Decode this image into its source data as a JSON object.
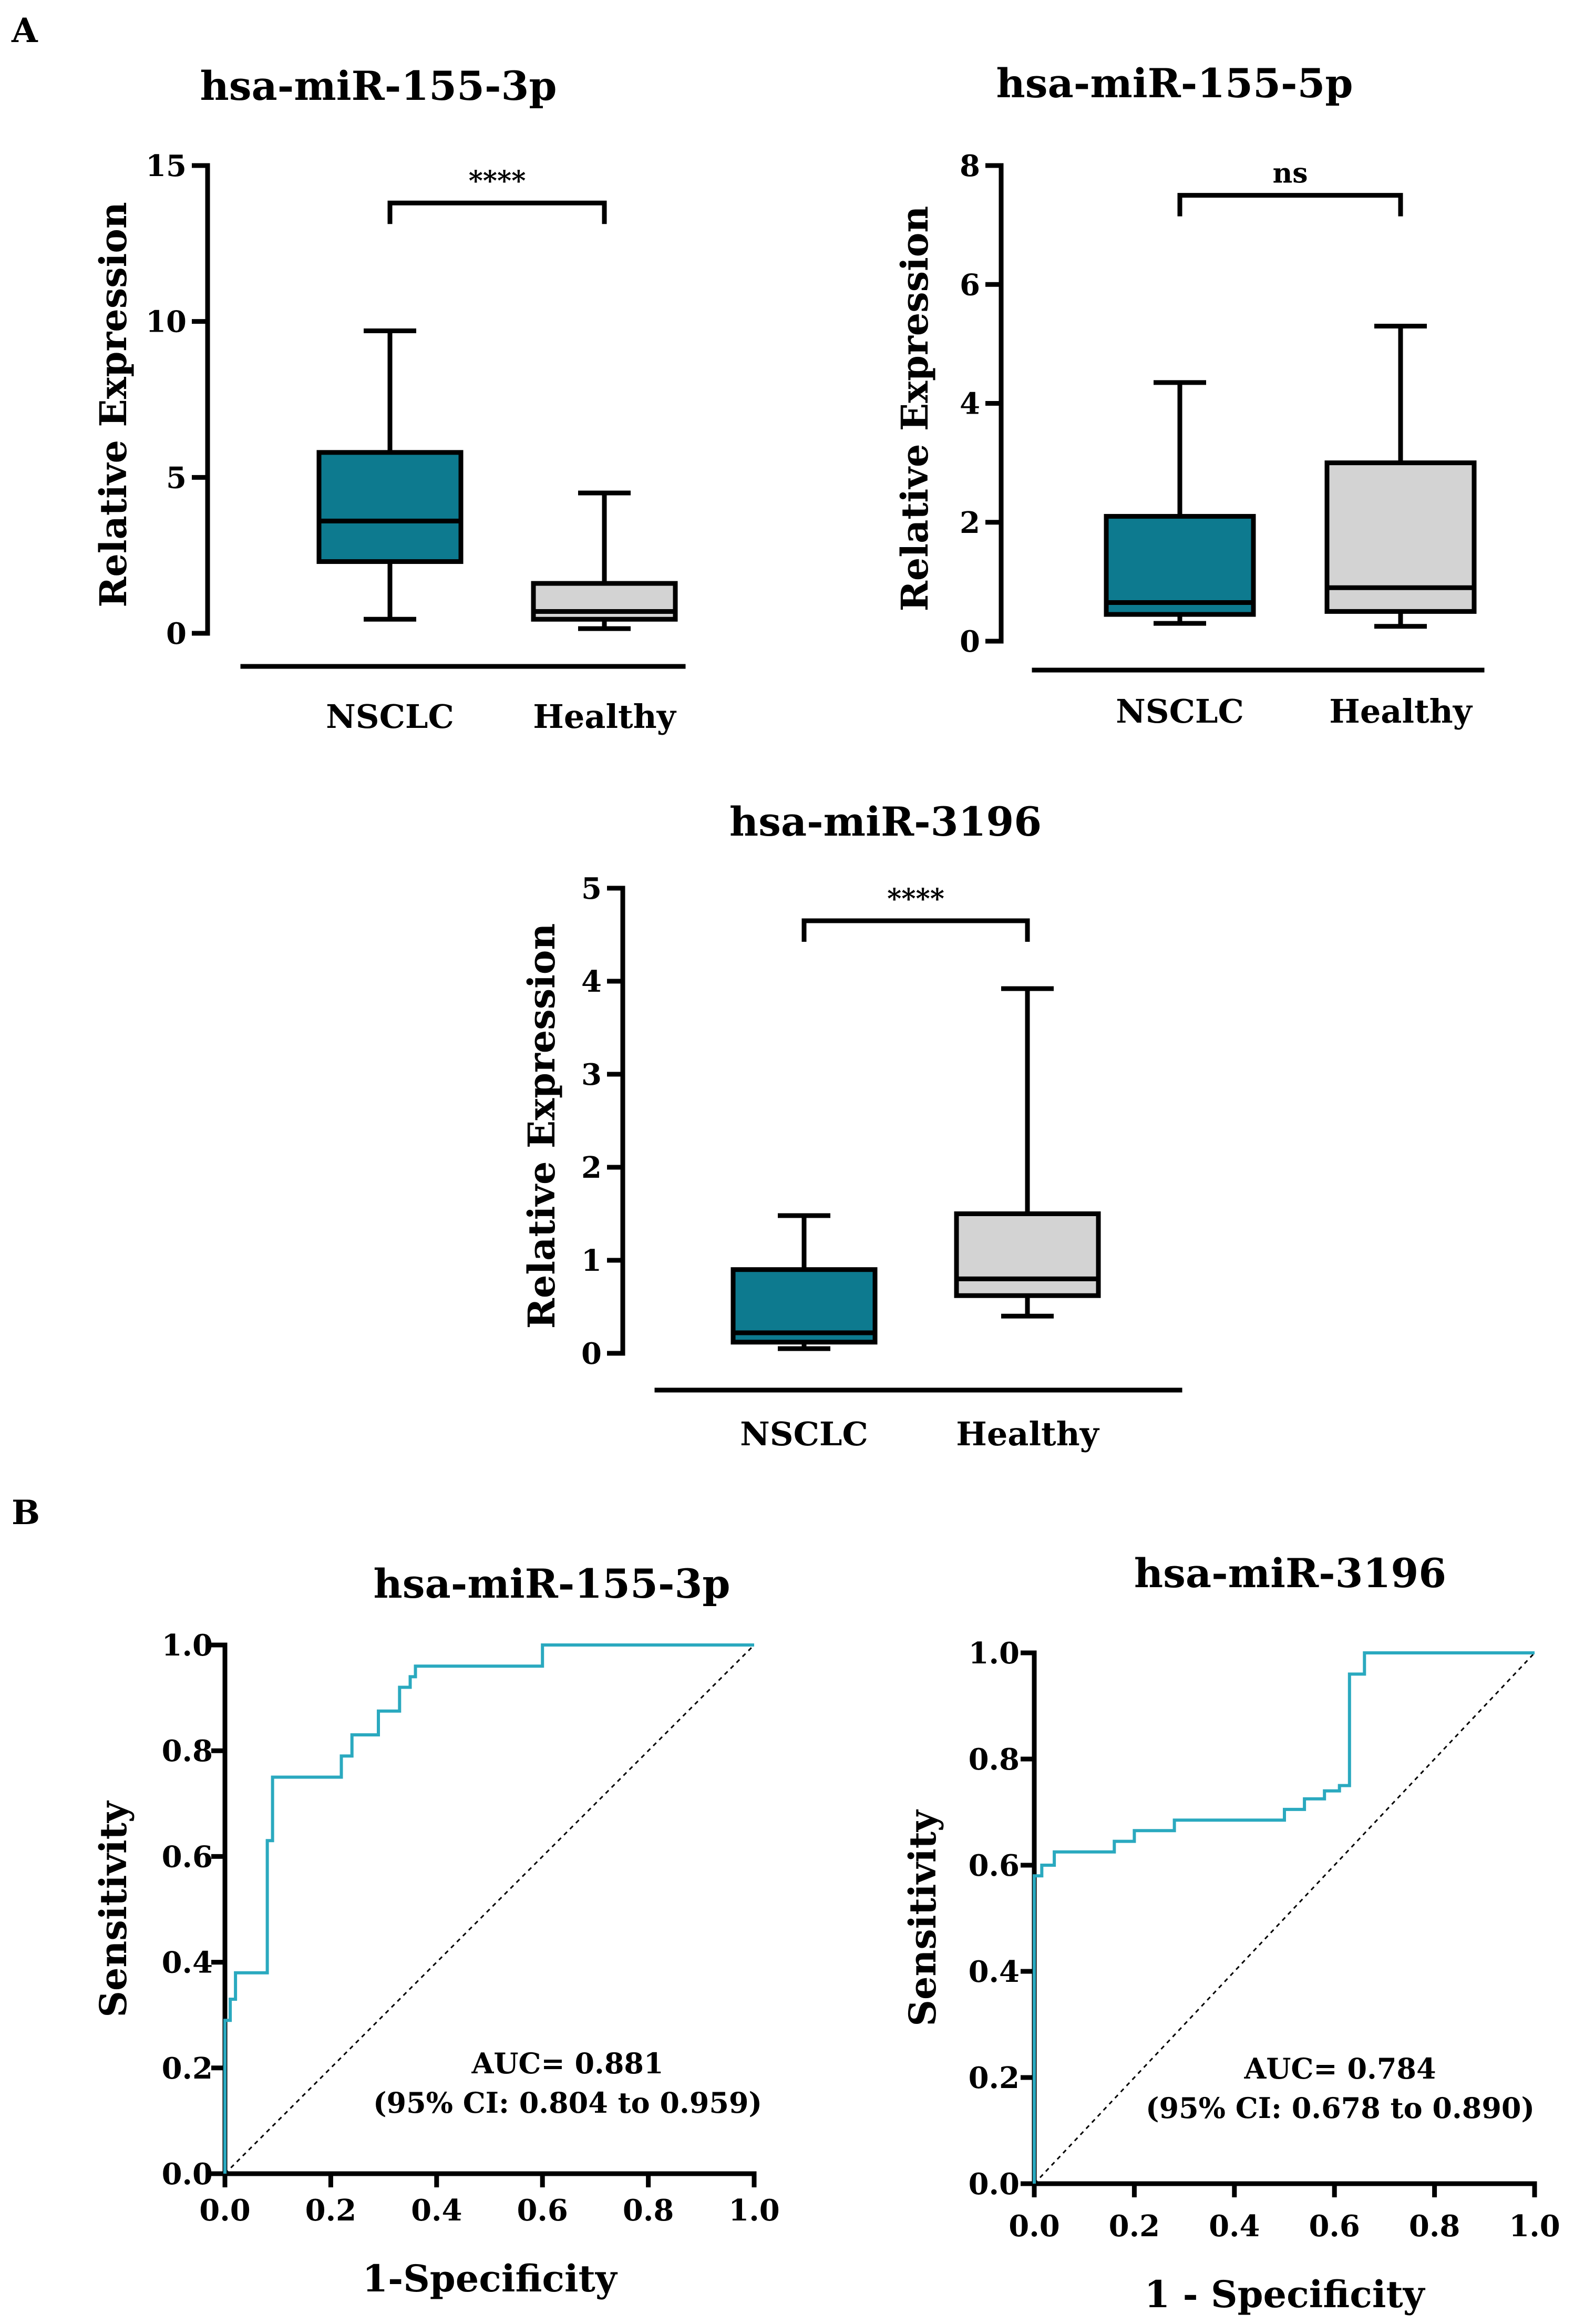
{
  "panels": {
    "a": "A",
    "b": "B"
  },
  "colors": {
    "nsclc": "#0d7a8f",
    "healthy": "#d3d3d3",
    "roc": "#2aa9bf",
    "axis": "#000000"
  },
  "chart_data": [
    {
      "type": "box",
      "title": "hsa-miR-155-3p",
      "ylabel": "Relative Expression",
      "ylim": [
        0,
        15
      ],
      "yticks": [
        0,
        5,
        10,
        15
      ],
      "categories": [
        "NSCLC",
        "Healthy"
      ],
      "boxes": [
        {
          "name": "NSCLC",
          "whisker_low": 0.45,
          "q1": 2.3,
          "median": 3.6,
          "q3": 5.8,
          "whisker_high": 9.7
        },
        {
          "name": "Healthy",
          "whisker_low": 0.15,
          "q1": 0.45,
          "median": 0.7,
          "q3": 1.6,
          "whisker_high": 4.5
        }
      ],
      "comparison": {
        "label": "****",
        "y": 13.8
      }
    },
    {
      "type": "box",
      "title": "hsa-miR-155-5p",
      "ylabel": "Relative Expression",
      "ylim": [
        0,
        8
      ],
      "yticks": [
        0,
        2,
        4,
        6,
        8
      ],
      "categories": [
        "NSCLC",
        "Healthy"
      ],
      "boxes": [
        {
          "name": "NSCLC",
          "whisker_low": 0.3,
          "q1": 0.45,
          "median": 0.65,
          "q3": 2.1,
          "whisker_high": 4.35
        },
        {
          "name": "Healthy",
          "whisker_low": 0.25,
          "q1": 0.5,
          "median": 0.9,
          "q3": 3.0,
          "whisker_high": 5.3
        }
      ],
      "comparison": {
        "label": "ns",
        "y": 7.5
      }
    },
    {
      "type": "box",
      "title": "hsa-miR-3196",
      "ylabel": "Relative Expression",
      "ylim": [
        0,
        5
      ],
      "yticks": [
        0,
        1,
        2,
        3,
        4,
        5
      ],
      "categories": [
        "NSCLC",
        "Healthy"
      ],
      "boxes": [
        {
          "name": "NSCLC",
          "whisker_low": 0.05,
          "q1": 0.12,
          "median": 0.22,
          "q3": 0.9,
          "whisker_high": 1.48
        },
        {
          "name": "Healthy",
          "whisker_low": 0.4,
          "q1": 0.62,
          "median": 0.8,
          "q3": 1.5,
          "whisker_high": 3.92
        }
      ],
      "comparison": {
        "label": "****",
        "y": 4.65
      }
    },
    {
      "type": "line",
      "title": "hsa-miR-155-3p",
      "xlabel": "1-Specificity",
      "ylabel": "Sensitivity",
      "xlim": [
        0,
        1
      ],
      "ylim": [
        0,
        1
      ],
      "xticks": [
        "0.0",
        "0.2",
        "0.4",
        "0.6",
        "0.8",
        "1.0"
      ],
      "yticks": [
        "0.0",
        "0.2",
        "0.4",
        "0.6",
        "0.8",
        "1.0"
      ],
      "annotation": [
        "AUC= 0.881",
        "(95% CI: 0.804 to 0.959)"
      ],
      "series": [
        {
          "name": "ROC",
          "x": [
            0,
            0,
            0.01,
            0.01,
            0.02,
            0.02,
            0.08,
            0.08,
            0.09,
            0.09,
            0.22,
            0.22,
            0.24,
            0.24,
            0.29,
            0.29,
            0.33,
            0.33,
            0.35,
            0.35,
            0.36,
            0.36,
            0.6,
            0.6,
            1.0
          ],
          "y": [
            0,
            0.29,
            0.29,
            0.33,
            0.33,
            0.38,
            0.38,
            0.63,
            0.63,
            0.75,
            0.75,
            0.79,
            0.79,
            0.83,
            0.83,
            0.875,
            0.875,
            0.92,
            0.92,
            0.94,
            0.94,
            0.96,
            0.96,
            1.0,
            1.0
          ]
        },
        {
          "name": "Reference",
          "x": [
            0,
            1
          ],
          "y": [
            0,
            1
          ]
        }
      ]
    },
    {
      "type": "line",
      "title": "hsa-miR-3196",
      "xlabel": "1 - Specificity",
      "ylabel": "Sensitivity",
      "xlim": [
        0,
        1
      ],
      "ylim": [
        0,
        1
      ],
      "xticks": [
        "0.0",
        "0.2",
        "0.4",
        "0.6",
        "0.8",
        "1.0"
      ],
      "yticks": [
        "0.0",
        "0.2",
        "0.4",
        "0.6",
        "0.8",
        "1.0"
      ],
      "annotation": [
        "AUC= 0.784",
        "(95% CI: 0.678 to 0.890)"
      ],
      "series": [
        {
          "name": "ROC",
          "x": [
            0,
            0,
            0.015,
            0.015,
            0.04,
            0.04,
            0.16,
            0.16,
            0.2,
            0.2,
            0.28,
            0.28,
            0.5,
            0.5,
            0.54,
            0.54,
            0.58,
            0.58,
            0.61,
            0.61,
            0.63,
            0.63,
            0.66,
            0.66,
            1.0
          ],
          "y": [
            0,
            0.58,
            0.58,
            0.6,
            0.6,
            0.625,
            0.625,
            0.645,
            0.645,
            0.665,
            0.665,
            0.685,
            0.685,
            0.705,
            0.705,
            0.725,
            0.725,
            0.74,
            0.74,
            0.75,
            0.75,
            0.96,
            0.96,
            1.0,
            1.0
          ]
        },
        {
          "name": "Reference",
          "x": [
            0,
            1
          ],
          "y": [
            0,
            1
          ]
        }
      ]
    }
  ]
}
